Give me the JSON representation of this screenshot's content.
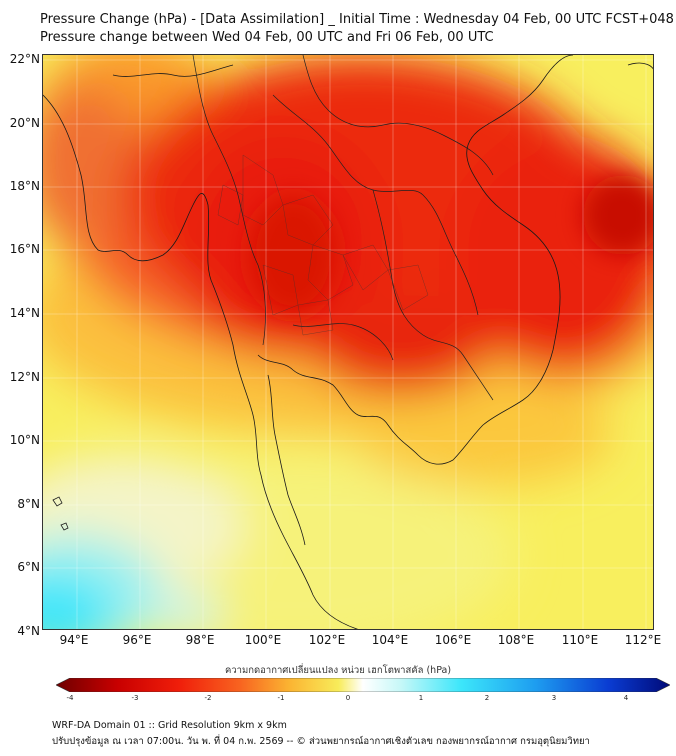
{
  "title": {
    "line1": "Pressure Change (hPa) - [Data Assimilation] _ Initial Time : Wednesday 04 Feb, 00 UTC FCST+048",
    "line2": "Pressure change between Wed 04 Feb, 00 UTC and Fri 06 Feb, 00 UTC"
  },
  "map": {
    "lat_labels": [
      "22°N",
      "20°N",
      "18°N",
      "16°N",
      "14°N",
      "12°N",
      "10°N",
      "8°N",
      "6°N",
      "4°N"
    ],
    "lon_labels": [
      "94°E",
      "96°E",
      "98°E",
      "100°E",
      "102°E",
      "104°E",
      "106°E",
      "108°E",
      "110°E",
      "112°E"
    ],
    "lat_range": [
      4,
      22
    ],
    "lon_range": [
      93,
      112.3
    ],
    "field_colors": {
      "dark_red": "#c80000",
      "red": "#e81e0a",
      "orange_red": "#f5551e",
      "orange": "#fa9628",
      "yellow_orange": "#fbc83c",
      "yellow": "#f8f05a",
      "light_yellow": "#f4f4c8",
      "cyan": "#3ce6fa"
    }
  },
  "colorbar": {
    "label": "ความกดอากาศเปลี่ยนแปลง หน่วย เฮกโตพาสคัล (hPa)",
    "ticks": [
      "-4",
      "-3",
      "-2",
      "-1",
      "0",
      "1",
      "2",
      "3",
      "4"
    ],
    "range": [
      -4,
      4
    ]
  },
  "footer": {
    "line1": "WRF-DA Domain 01 :: Grid Resolution 9km x 9km",
    "line2": "ปรับปรุงข้อมูล ณ เวลา 07:00น. วัน พ. ที่ 04 ก.พ. 2569 -- © ส่วนพยากรณ์อากาศเชิงตัวเลข กองพยากรณ์อากาศ กรมอุตุนิยมวิทยา"
  }
}
